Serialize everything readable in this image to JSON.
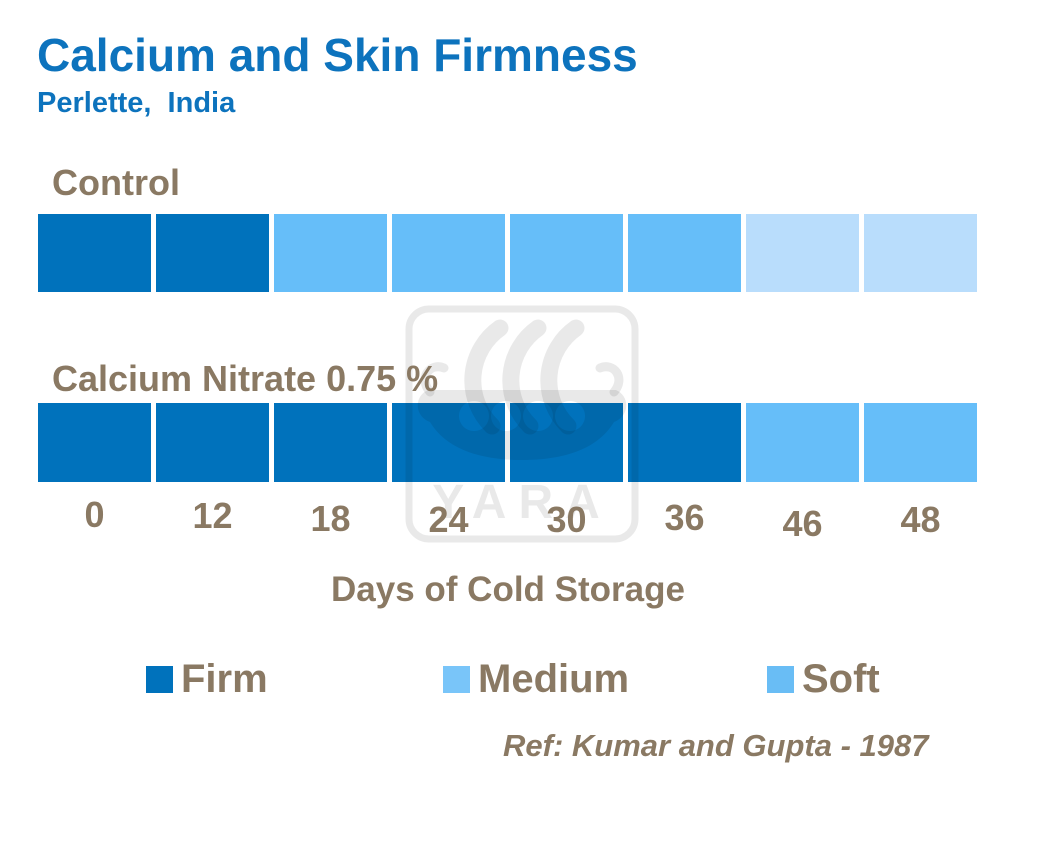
{
  "header": {
    "title": "Calcium and Skin Firmness",
    "subtitle": "Perlette,  India"
  },
  "colors": {
    "title_blue": "#0D73BD",
    "label_brown": "#8A7963",
    "firm": "#0072BC",
    "medium": "#66BEF9",
    "soft": "#B9DDFC",
    "legend_medium": "#79C5F9",
    "legend_soft": "#69BDF5",
    "watermark": "rgba(0,0,0,0.085)"
  },
  "chart_data": {
    "type": "bar",
    "subtype": "horizontal-segmented-firmness-timeline",
    "categories_days": [
      "0",
      "12",
      "18",
      "24",
      "30",
      "36",
      "46",
      "48"
    ],
    "x_label_y_offsets": [
      0,
      1,
      4,
      5,
      5,
      3,
      9,
      5
    ],
    "series": [
      {
        "name": "Control",
        "levels": [
          "firm",
          "firm",
          "medium",
          "medium",
          "medium",
          "medium",
          "soft",
          "soft"
        ],
        "firmness_by_day": {
          "0": "Firm",
          "12": "Firm",
          "18": "Medium",
          "24": "Medium",
          "30": "Medium",
          "36": "Medium",
          "46": "Soft",
          "48": "Soft"
        }
      },
      {
        "name": "Calcium Nitrate 0.75 %",
        "levels": [
          "firm",
          "firm",
          "firm",
          "firm",
          "firm",
          "firm",
          "medium",
          "medium"
        ],
        "firmness_by_day": {
          "0": "Firm",
          "12": "Firm",
          "18": "Firm",
          "24": "Firm",
          "30": "Firm",
          "36": "Firm",
          "46": "Medium",
          "48": "Medium"
        }
      }
    ],
    "title": "Calcium and Skin Firmness",
    "subtitle": "Perlette, India",
    "xlabel": "Days of Cold Storage",
    "legend": [
      {
        "label": "Firm",
        "color_key": "firm"
      },
      {
        "label": "Medium",
        "color_key": "legend_medium"
      },
      {
        "label": "Soft",
        "color_key": "legend_soft"
      }
    ],
    "legend_position": "bottom",
    "grid": false,
    "reference": "Ref: Kumar and Gupta - 1987"
  },
  "watermark": {
    "text": "YARA"
  }
}
